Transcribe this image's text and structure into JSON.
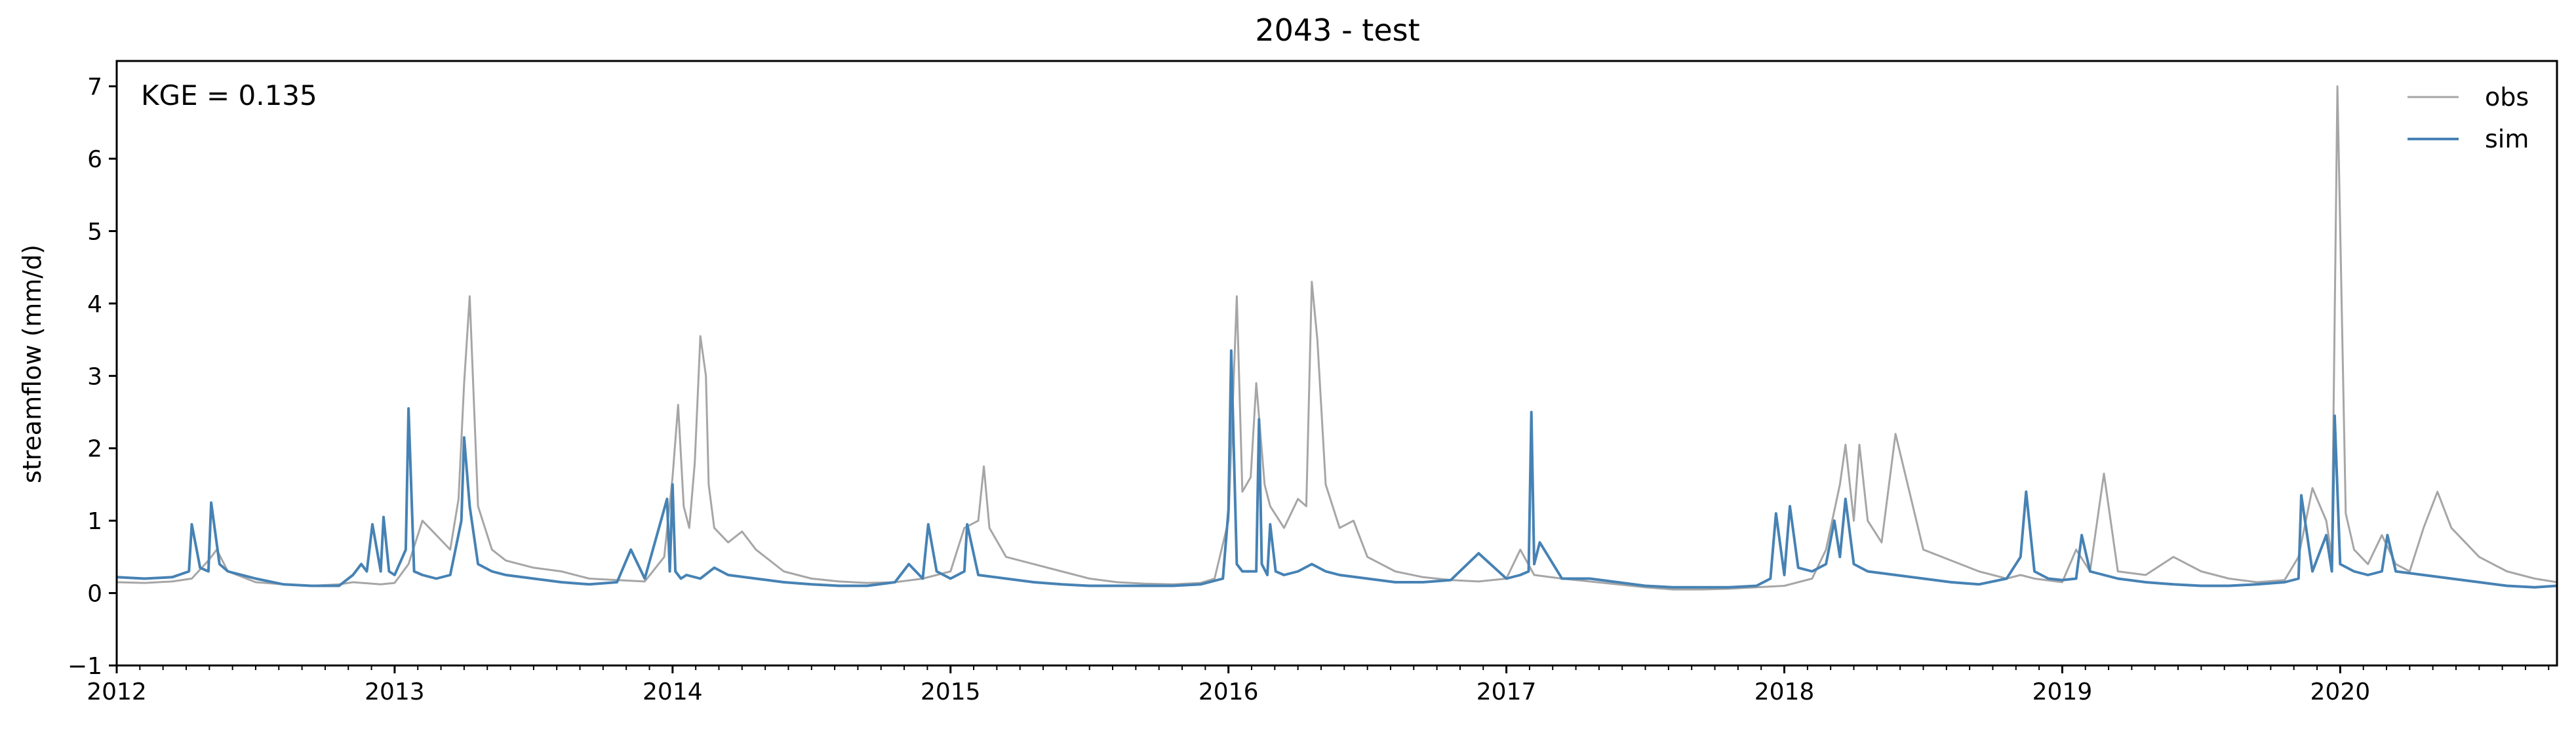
{
  "chart_data": {
    "type": "line",
    "title": "2043 - test",
    "xlabel": "",
    "ylabel": "streamflow (mm/d)",
    "annotation": "KGE = 0.135",
    "xlim": [
      2012.0,
      2020.78
    ],
    "ylim": [
      -1,
      7.35
    ],
    "yticks": [
      -1,
      0,
      1,
      2,
      3,
      4,
      5,
      6,
      7
    ],
    "xticks": [
      2012,
      2013,
      2014,
      2015,
      2016,
      2017,
      2018,
      2019,
      2020
    ],
    "grid": false,
    "legend": "top-right",
    "series": [
      {
        "name": "obs",
        "color": "#a6a6a6",
        "x": [
          2012.0,
          2012.1,
          2012.2,
          2012.27,
          2012.33,
          2012.36,
          2012.4,
          2012.5,
          2012.6,
          2012.7,
          2012.8,
          2012.85,
          2012.95,
          2013.0,
          2013.05,
          2013.1,
          2013.15,
          2013.2,
          2013.23,
          2013.25,
          2013.27,
          2013.3,
          2013.35,
          2013.4,
          2013.5,
          2013.6,
          2013.7,
          2013.8,
          2013.9,
          2013.97,
          2014.0,
          2014.02,
          2014.04,
          2014.06,
          2014.08,
          2014.1,
          2014.12,
          2014.13,
          2014.15,
          2014.2,
          2014.25,
          2014.3,
          2014.4,
          2014.5,
          2014.6,
          2014.7,
          2014.8,
          2014.9,
          2015.0,
          2015.05,
          2015.1,
          2015.12,
          2015.14,
          2015.2,
          2015.3,
          2015.4,
          2015.5,
          2015.6,
          2015.7,
          2015.8,
          2015.9,
          2015.95,
          2016.0,
          2016.03,
          2016.05,
          2016.08,
          2016.1,
          2016.13,
          2016.15,
          2016.2,
          2016.25,
          2016.28,
          2016.3,
          2016.32,
          2016.35,
          2016.4,
          2016.45,
          2016.5,
          2016.6,
          2016.7,
          2016.8,
          2016.9,
          2017.0,
          2017.05,
          2017.1,
          2017.2,
          2017.3,
          2017.4,
          2017.5,
          2017.6,
          2017.7,
          2017.8,
          2017.9,
          2018.0,
          2018.1,
          2018.15,
          2018.2,
          2018.22,
          2018.25,
          2018.27,
          2018.3,
          2018.35,
          2018.4,
          2018.5,
          2018.6,
          2018.7,
          2018.8,
          2018.85,
          2018.9,
          2019.0,
          2019.05,
          2019.1,
          2019.15,
          2019.2,
          2019.3,
          2019.4,
          2019.5,
          2019.6,
          2019.7,
          2019.8,
          2019.85,
          2019.9,
          2019.95,
          2019.97,
          2019.99,
          2020.02,
          2020.05,
          2020.1,
          2020.15,
          2020.2,
          2020.25,
          2020.3,
          2020.35,
          2020.4,
          2020.5,
          2020.6,
          2020.7,
          2020.78
        ],
        "y": [
          0.15,
          0.14,
          0.16,
          0.2,
          0.45,
          0.6,
          0.3,
          0.15,
          0.12,
          0.1,
          0.12,
          0.15,
          0.12,
          0.14,
          0.4,
          1.0,
          0.8,
          0.6,
          1.3,
          2.9,
          4.1,
          1.2,
          0.6,
          0.45,
          0.35,
          0.3,
          0.2,
          0.18,
          0.16,
          0.5,
          1.6,
          2.6,
          1.2,
          0.9,
          1.8,
          3.55,
          3.0,
          1.5,
          0.9,
          0.7,
          0.85,
          0.6,
          0.3,
          0.2,
          0.16,
          0.14,
          0.15,
          0.2,
          0.3,
          0.9,
          1.0,
          1.75,
          0.9,
          0.5,
          0.4,
          0.3,
          0.2,
          0.15,
          0.13,
          0.12,
          0.14,
          0.2,
          1.0,
          4.1,
          1.4,
          1.6,
          2.9,
          1.5,
          1.2,
          0.9,
          1.3,
          1.2,
          4.3,
          3.5,
          1.5,
          0.9,
          1.0,
          0.5,
          0.3,
          0.22,
          0.18,
          0.16,
          0.2,
          0.6,
          0.25,
          0.2,
          0.16,
          0.12,
          0.08,
          0.05,
          0.05,
          0.06,
          0.08,
          0.1,
          0.2,
          0.6,
          1.5,
          2.05,
          1.0,
          2.05,
          1.0,
          0.7,
          2.2,
          0.6,
          0.45,
          0.3,
          0.2,
          0.25,
          0.2,
          0.15,
          0.6,
          0.3,
          1.65,
          0.3,
          0.25,
          0.5,
          0.3,
          0.2,
          0.15,
          0.18,
          0.5,
          1.45,
          1.0,
          0.5,
          7.0,
          1.1,
          0.6,
          0.4,
          0.8,
          0.4,
          0.3,
          0.9,
          1.4,
          0.9,
          0.5,
          0.3,
          0.2,
          0.15
        ]
      },
      {
        "name": "sim",
        "color": "#4682b4",
        "x": [
          2012.0,
          2012.1,
          2012.2,
          2012.26,
          2012.27,
          2012.3,
          2012.33,
          2012.34,
          2012.37,
          2012.4,
          2012.5,
          2012.6,
          2012.7,
          2012.8,
          2012.85,
          2012.88,
          2012.9,
          2012.92,
          2012.95,
          2012.96,
          2012.98,
          2013.0,
          2013.04,
          2013.05,
          2013.07,
          2013.1,
          2013.15,
          2013.2,
          2013.24,
          2013.25,
          2013.27,
          2013.3,
          2013.35,
          2013.4,
          2013.5,
          2013.6,
          2013.7,
          2013.8,
          2013.85,
          2013.9,
          2013.98,
          2013.99,
          2014.0,
          2014.01,
          2014.03,
          2014.05,
          2014.1,
          2014.15,
          2014.2,
          2014.3,
          2014.4,
          2014.5,
          2014.6,
          2014.7,
          2014.8,
          2014.85,
          2014.9,
          2014.92,
          2014.95,
          2015.0,
          2015.05,
          2015.06,
          2015.1,
          2015.2,
          2015.3,
          2015.4,
          2015.5,
          2015.6,
          2015.7,
          2015.8,
          2015.9,
          2015.98,
          2016.0,
          2016.01,
          2016.03,
          2016.05,
          2016.1,
          2016.11,
          2016.12,
          2016.14,
          2016.15,
          2016.17,
          2016.2,
          2016.25,
          2016.3,
          2016.35,
          2016.4,
          2016.5,
          2016.6,
          2016.7,
          2016.8,
          2016.9,
          2017.0,
          2017.05,
          2017.08,
          2017.09,
          2017.1,
          2017.12,
          2017.2,
          2017.3,
          2017.4,
          2017.5,
          2017.6,
          2017.7,
          2017.8,
          2017.9,
          2017.95,
          2017.97,
          2018.0,
          2018.02,
          2018.05,
          2018.1,
          2018.15,
          2018.18,
          2018.2,
          2018.22,
          2018.25,
          2018.3,
          2018.4,
          2018.5,
          2018.6,
          2018.7,
          2018.8,
          2018.85,
          2018.87,
          2018.9,
          2018.95,
          2019.0,
          2019.05,
          2019.07,
          2019.1,
          2019.2,
          2019.3,
          2019.4,
          2019.5,
          2019.6,
          2019.7,
          2019.8,
          2019.85,
          2019.86,
          2019.9,
          2019.95,
          2019.97,
          2019.98,
          2020.0,
          2020.05,
          2020.1,
          2020.15,
          2020.17,
          2020.2,
          2020.3,
          2020.4,
          2020.5,
          2020.6,
          2020.7,
          2020.78
        ],
        "y": [
          0.22,
          0.2,
          0.22,
          0.3,
          0.95,
          0.35,
          0.3,
          1.25,
          0.4,
          0.3,
          0.2,
          0.12,
          0.1,
          0.1,
          0.25,
          0.4,
          0.3,
          0.95,
          0.3,
          1.05,
          0.3,
          0.25,
          0.6,
          2.55,
          0.3,
          0.25,
          0.2,
          0.25,
          1.0,
          2.15,
          1.2,
          0.4,
          0.3,
          0.25,
          0.2,
          0.15,
          0.12,
          0.15,
          0.6,
          0.2,
          1.3,
          0.3,
          1.5,
          0.3,
          0.2,
          0.25,
          0.2,
          0.35,
          0.25,
          0.2,
          0.15,
          0.12,
          0.1,
          0.1,
          0.15,
          0.4,
          0.2,
          0.95,
          0.3,
          0.2,
          0.3,
          0.95,
          0.25,
          0.2,
          0.15,
          0.12,
          0.1,
          0.1,
          0.1,
          0.1,
          0.12,
          0.2,
          1.15,
          3.35,
          0.4,
          0.3,
          0.3,
          2.4,
          0.4,
          0.25,
          0.95,
          0.3,
          0.25,
          0.3,
          0.4,
          0.3,
          0.25,
          0.2,
          0.15,
          0.15,
          0.18,
          0.55,
          0.2,
          0.25,
          0.3,
          2.5,
          0.4,
          0.7,
          0.2,
          0.2,
          0.15,
          0.1,
          0.08,
          0.08,
          0.08,
          0.1,
          0.2,
          1.1,
          0.25,
          1.2,
          0.35,
          0.3,
          0.4,
          1.0,
          0.5,
          1.3,
          0.4,
          0.3,
          0.25,
          0.2,
          0.15,
          0.12,
          0.2,
          0.5,
          1.4,
          0.3,
          0.2,
          0.18,
          0.2,
          0.8,
          0.3,
          0.2,
          0.15,
          0.12,
          0.1,
          0.1,
          0.12,
          0.15,
          0.2,
          1.35,
          0.3,
          0.8,
          0.3,
          2.45,
          0.4,
          0.3,
          0.25,
          0.3,
          0.8,
          0.3,
          0.25,
          0.2,
          0.15,
          0.1,
          0.08,
          0.1
        ]
      }
    ]
  }
}
